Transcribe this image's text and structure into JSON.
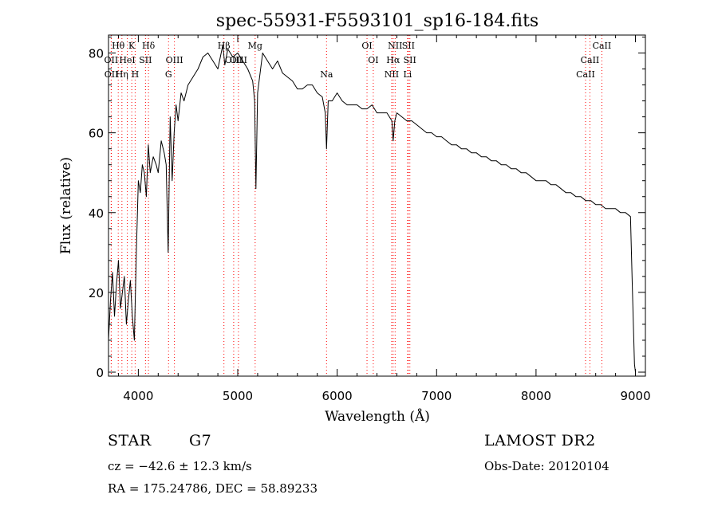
{
  "chart_data": {
    "type": "line",
    "title": "spec-55931-F5593101_sp16-184.fits",
    "xlabel": "Wavelength (Å)",
    "ylabel": "Flux (relative)",
    "xlim": [
      3700,
      9100
    ],
    "ylim": [
      -1,
      84.5
    ],
    "xticks": [
      4000,
      5000,
      6000,
      7000,
      8000,
      9000
    ],
    "yticks": [
      0,
      20,
      40,
      60,
      80
    ],
    "grid": false,
    "legend": "none",
    "line_color": "#000000",
    "marker_color": "#ff0000",
    "series": [
      {
        "x": [
          3700,
          3720,
          3740,
          3760,
          3780,
          3800,
          3820,
          3840,
          3860,
          3880,
          3900,
          3920,
          3940,
          3960,
          3980,
          4000,
          4020,
          4040,
          4060,
          4080,
          4100,
          4120,
          4150,
          4180,
          4200,
          4230,
          4260,
          4280,
          4300,
          4320,
          4340,
          4360,
          4380,
          4400,
          4430,
          4460,
          4500,
          4550,
          4600,
          4650,
          4700,
          4750,
          4800,
          4850,
          4870,
          4900,
          4950,
          5000,
          5050,
          5100,
          5150,
          5170,
          5183,
          5200,
          5250,
          5300,
          5350,
          5400,
          5450,
          5500,
          5550,
          5600,
          5650,
          5700,
          5750,
          5800,
          5850,
          5880,
          5893,
          5910,
          5950,
          6000,
          6050,
          6100,
          6150,
          6200,
          6250,
          6300,
          6350,
          6400,
          6450,
          6500,
          6550,
          6563,
          6580,
          6600,
          6650,
          6700,
          6750,
          6800,
          6850,
          6900,
          6950,
          7000,
          7050,
          7100,
          7150,
          7200,
          7250,
          7300,
          7350,
          7400,
          7450,
          7500,
          7550,
          7600,
          7650,
          7700,
          7750,
          7800,
          7850,
          7900,
          7950,
          8000,
          8050,
          8100,
          8150,
          8200,
          8250,
          8300,
          8350,
          8400,
          8450,
          8500,
          8550,
          8600,
          8650,
          8700,
          8750,
          8800,
          8850,
          8900,
          8950,
          8970,
          8990,
          9000
        ],
        "y": [
          8,
          18,
          25,
          14,
          22,
          28,
          16,
          20,
          24,
          12,
          18,
          23,
          14,
          8,
          30,
          48,
          45,
          52,
          50,
          44,
          57,
          50,
          54,
          52,
          50,
          58,
          55,
          52,
          30,
          64,
          48,
          60,
          67,
          63,
          70,
          68,
          72,
          74,
          76,
          79,
          80,
          78,
          76,
          82,
          77,
          81,
          79,
          80,
          78,
          76,
          73,
          68,
          46,
          70,
          80,
          78,
          76,
          78,
          75,
          74,
          73,
          71,
          71,
          72,
          72,
          70,
          69,
          65,
          56,
          68,
          68,
          70,
          68,
          67,
          67,
          67,
          66,
          66,
          67,
          65,
          65,
          65,
          63,
          58,
          63,
          65,
          64,
          63,
          63,
          62,
          61,
          60,
          60,
          59,
          59,
          58,
          57,
          57,
          56,
          56,
          55,
          55,
          54,
          54,
          53,
          53,
          52,
          52,
          51,
          51,
          50,
          50,
          49,
          48,
          48,
          48,
          47,
          47,
          46,
          45,
          45,
          44,
          44,
          43,
          43,
          42,
          42,
          41,
          41,
          41,
          40,
          40,
          39,
          20,
          2,
          0
        ]
      }
    ],
    "lines": [
      {
        "label": "Hθ",
        "wavelength": 3798,
        "row": 0
      },
      {
        "label": "K",
        "wavelength": 3934,
        "row": 0
      },
      {
        "label": "Hδ",
        "wavelength": 4102,
        "row": 0
      },
      {
        "label": "Hβ",
        "wavelength": 4861,
        "row": 0
      },
      {
        "label": "Mg",
        "wavelength": 5175,
        "row": 0
      },
      {
        "label": "OI",
        "wavelength": 6300,
        "row": 0
      },
      {
        "label": "NII",
        "wavelength": 6583,
        "row": 0
      },
      {
        "label": "SII",
        "wavelength": 6716,
        "row": 0
      },
      {
        "label": "CaII",
        "wavelength": 8662,
        "row": 0
      },
      {
        "label": "OII",
        "wavelength": 3727,
        "row": 1
      },
      {
        "label": "HeI",
        "wavelength": 3889,
        "row": 1
      },
      {
        "label": "SII",
        "wavelength": 4072,
        "row": 1
      },
      {
        "label": "OIII",
        "wavelength": 4363,
        "row": 1
      },
      {
        "label": "OIII",
        "wavelength": 4959,
        "row": 1
      },
      {
        "label": "OIII",
        "wavelength": 5007,
        "row": 1
      },
      {
        "label": "OI",
        "wavelength": 6363,
        "row": 1
      },
      {
        "label": "Hα",
        "wavelength": 6563,
        "row": 1
      },
      {
        "label": "SII",
        "wavelength": 6731,
        "row": 1
      },
      {
        "label": "CaII",
        "wavelength": 8542,
        "row": 1
      },
      {
        "label": "OII",
        "wavelength": 3729,
        "row": 2
      },
      {
        "label": "Hη",
        "wavelength": 3835,
        "row": 2
      },
      {
        "label": "H",
        "wavelength": 3968,
        "row": 2
      },
      {
        "label": "G",
        "wavelength": 4304,
        "row": 2
      },
      {
        "label": "Na",
        "wavelength": 5893,
        "row": 2
      },
      {
        "label": "NII",
        "wavelength": 6548,
        "row": 2
      },
      {
        "label": "Li",
        "wavelength": 6708,
        "row": 2
      },
      {
        "label": "CaII",
        "wavelength": 8498,
        "row": 2
      }
    ]
  },
  "info": {
    "object_class": "STAR",
    "subclass": "G7",
    "survey": "LAMOST DR2",
    "redshift": "cz = −42.6 ± 12.3 km/s",
    "obs_date": "Obs-Date: 20120104",
    "coords": "RA = 175.24786, DEC =  58.89233"
  }
}
